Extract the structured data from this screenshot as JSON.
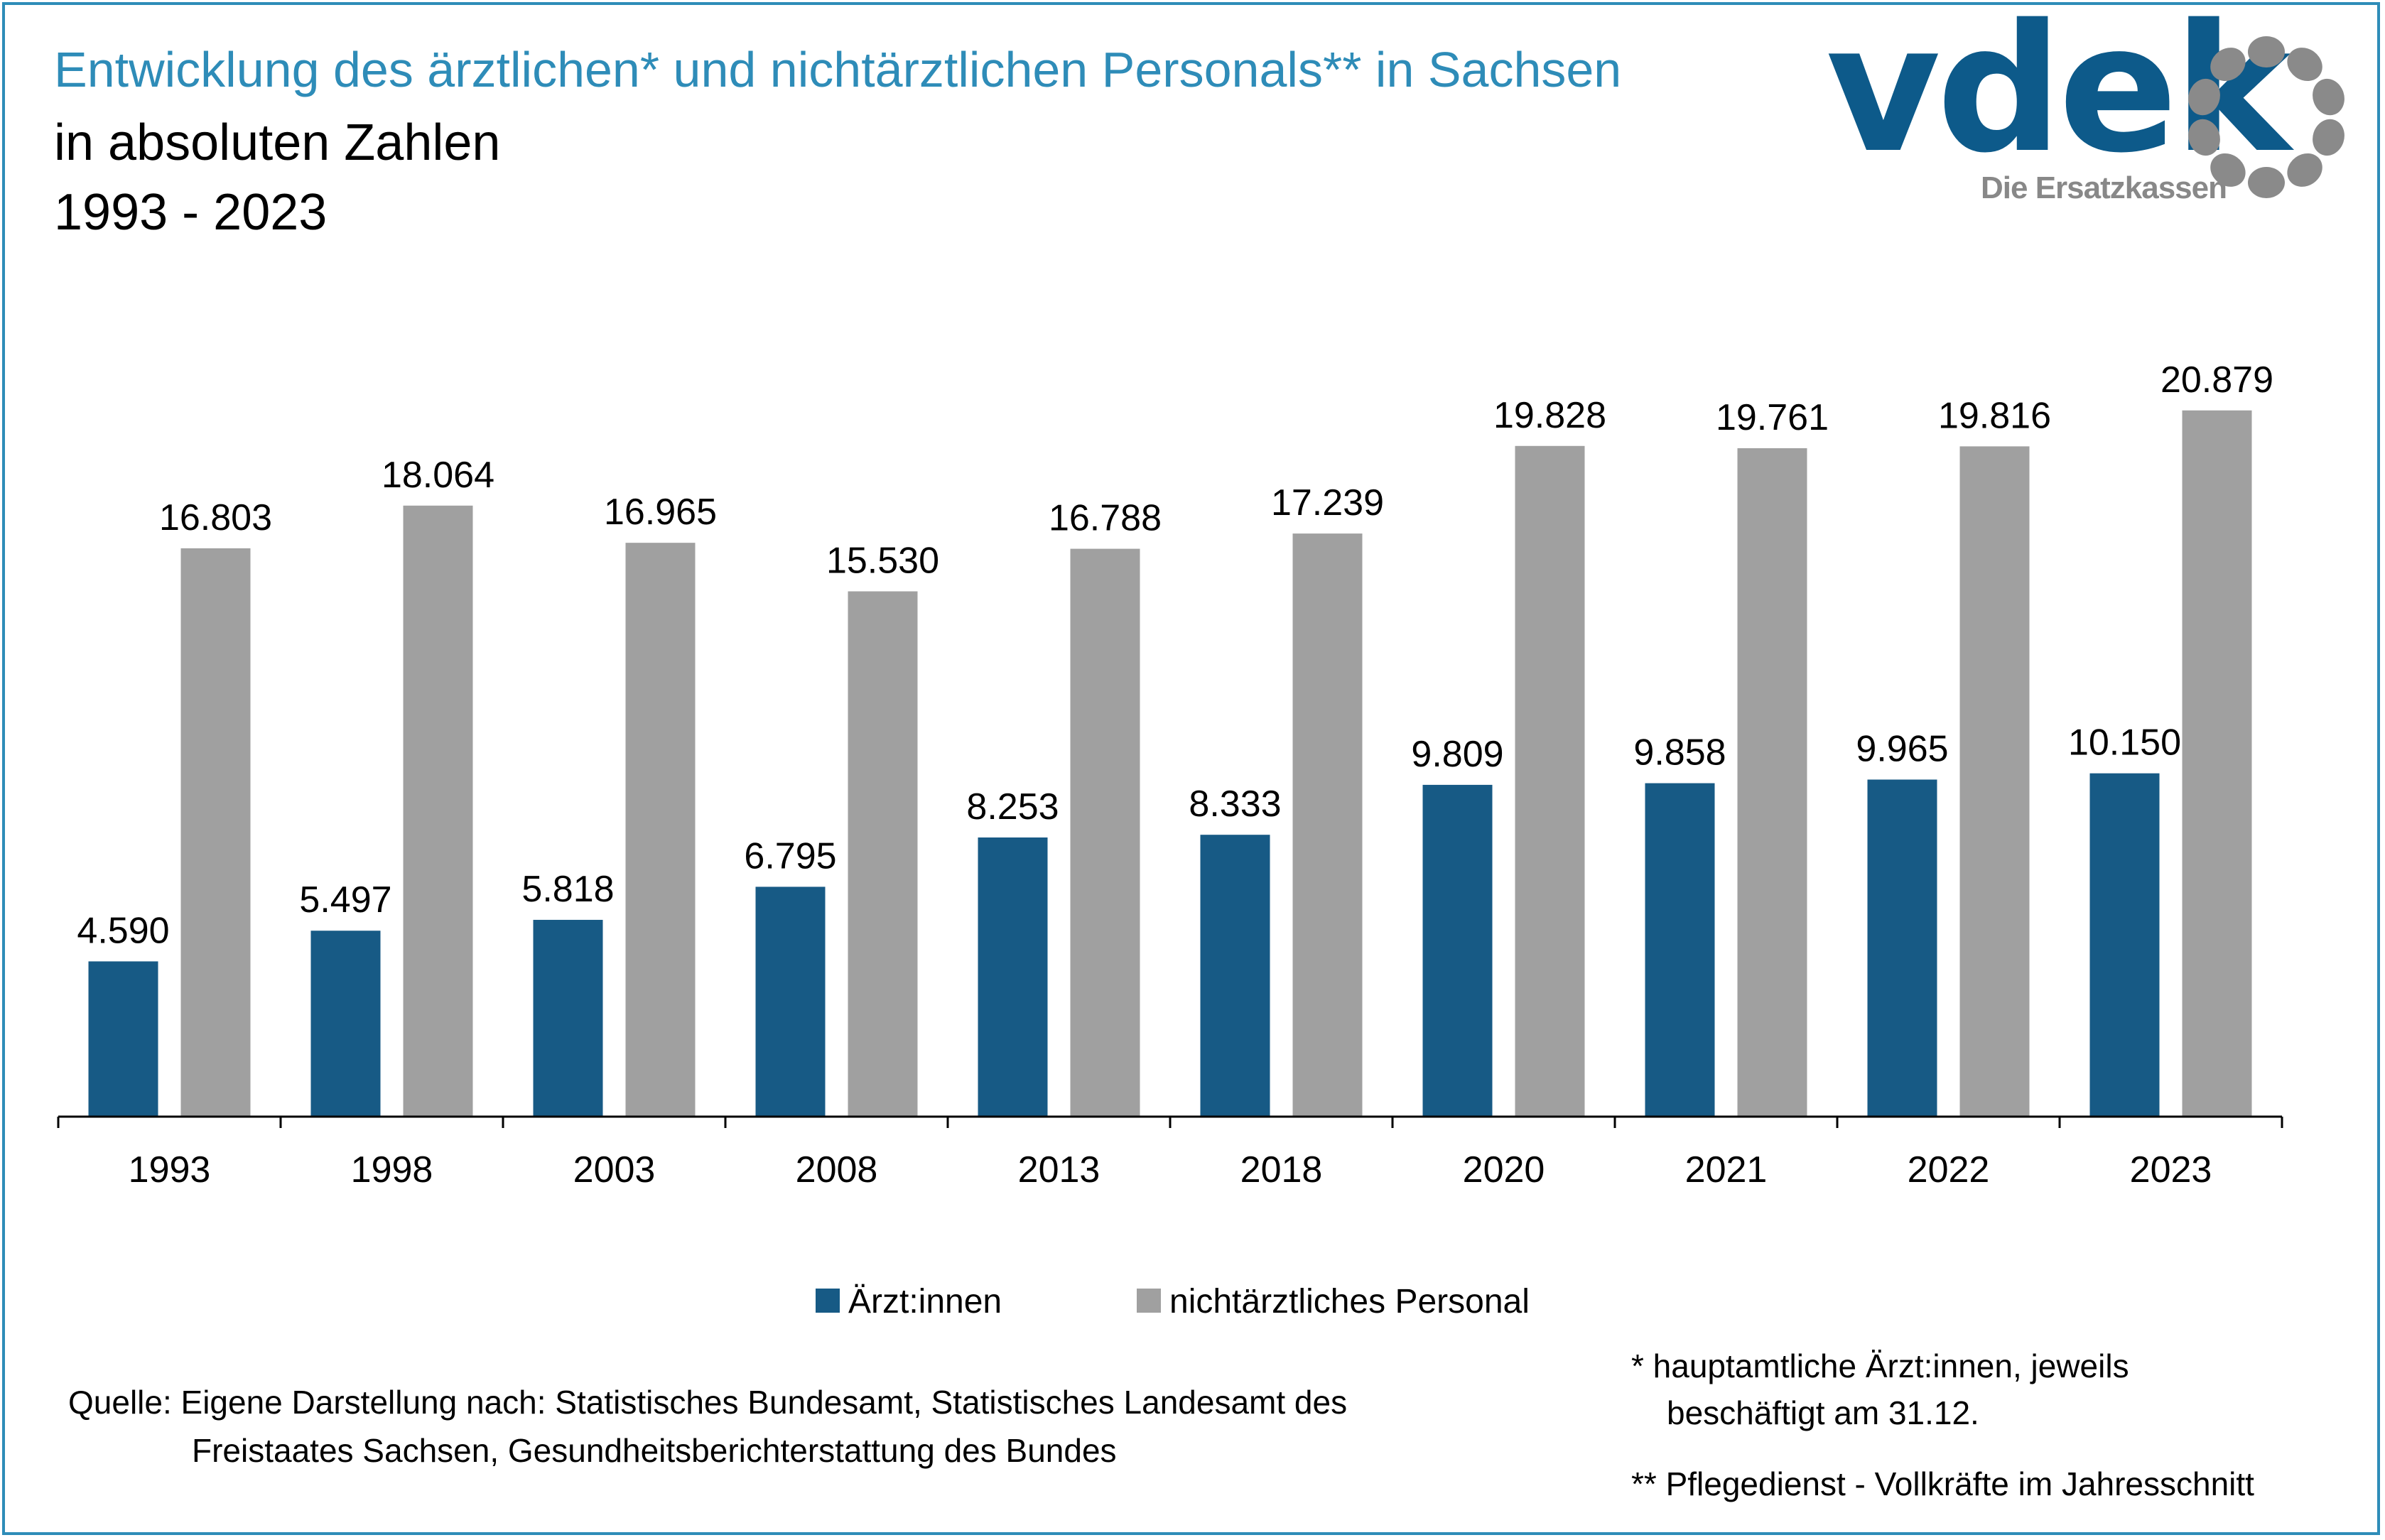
{
  "header": {
    "title": "Entwicklung des ärztlichen* und nichtärztlichen Personals** in Sachsen",
    "subtitle": "in absoluten Zahlen",
    "period": "1993 - 2023"
  },
  "logo": {
    "wordmark": "vdek",
    "tagline": "Die Ersatzkassen",
    "icon": "ring-of-dots-icon"
  },
  "colors": {
    "accent": "#2e8cb8",
    "aerzte": "#175a85",
    "personal": "#a0a0a0",
    "logo_blue": "#0d5a8a",
    "logo_grey": "#8a8a8a"
  },
  "chart_data": {
    "type": "bar",
    "categories": [
      "1993",
      "1998",
      "2003",
      "2008",
      "2013",
      "2018",
      "2020",
      "2021",
      "2022",
      "2023"
    ],
    "series": [
      {
        "name": "Ärzt:innen",
        "values": [
          4590,
          5497,
          5818,
          6795,
          8253,
          8333,
          9809,
          9858,
          9965,
          10150
        ],
        "labels": [
          "4.590",
          "5.497",
          "5.818",
          "6.795",
          "8.253",
          "8.333",
          "9.809",
          "9.858",
          "9.965",
          "10.150"
        ]
      },
      {
        "name": "nichtärztliches Personal",
        "values": [
          16803,
          18064,
          16965,
          15530,
          16788,
          17239,
          19828,
          19761,
          19816,
          20879
        ],
        "labels": [
          "16.803",
          "18.064",
          "16.965",
          "15.530",
          "16.788",
          "17.239",
          "19.828",
          "19.761",
          "19.816",
          "20.879"
        ]
      }
    ],
    "ylim": [
      0,
      21000
    ],
    "grid": false,
    "y_axis_visible": false,
    "legend_position": "bottom"
  },
  "legend": {
    "aerzte": "Ärzt:innen",
    "personal": "nichtärztliches Personal"
  },
  "footer": {
    "source_line1": "Quelle: Eigene Darstellung nach: Statistisches Bundesamt, Statistisches Landesamt des",
    "source_line2": "Freistaates Sachsen, Gesundheitsberichterstattung des Bundes",
    "note1_line1": "*  hauptamtliche Ärzt:innen, jeweils",
    "note1_line2": "beschäftigt am 31.12.",
    "note2": "** Pflegedienst - Vollkräfte im Jahresschnitt"
  }
}
